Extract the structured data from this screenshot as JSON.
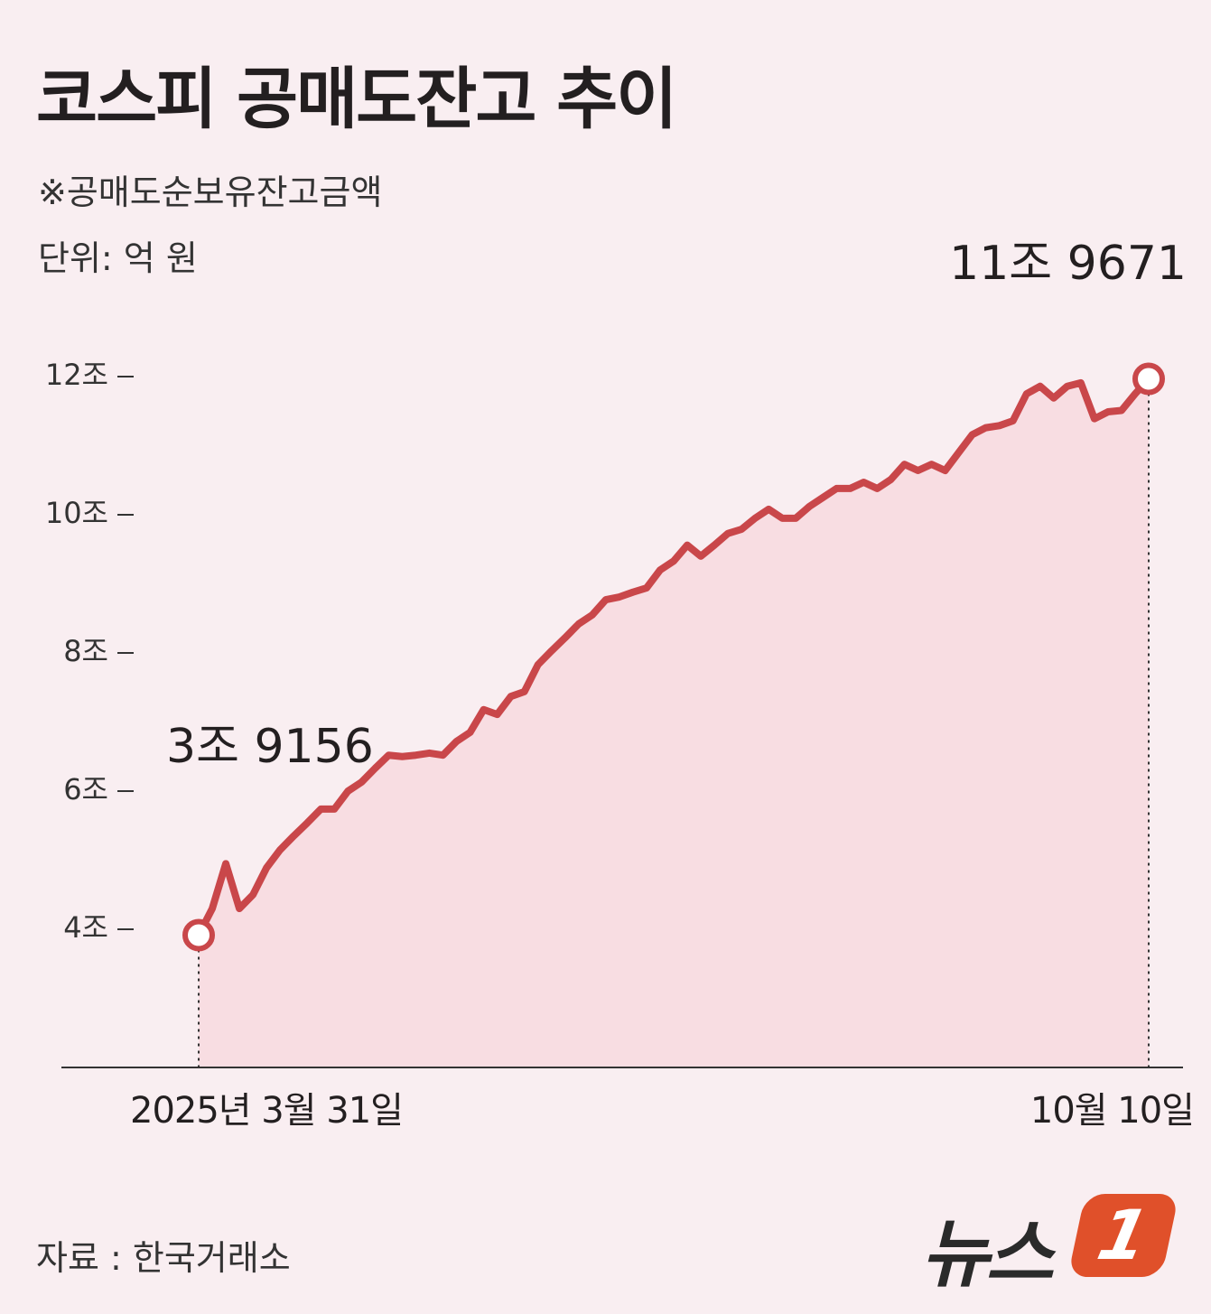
{
  "chart_data": {
    "type": "line",
    "title": "코스피 공매도잔고 추이",
    "subtitle": "※공매도순보유잔고금액",
    "unit": "단위: 억 원",
    "source": "자료 : 한국거래소",
    "logo": {
      "text": "뉴스",
      "badge": "1"
    },
    "color": "#c9474a",
    "fill": "#f8dde2",
    "ylim": [
      20000,
      140000
    ],
    "yticks": [
      {
        "value": 40000,
        "label": "4조"
      },
      {
        "value": 60000,
        "label": "6조"
      },
      {
        "value": 80000,
        "label": "8조"
      },
      {
        "value": 100000,
        "label": "10조"
      },
      {
        "value": 120000,
        "label": "12조"
      }
    ],
    "categories": [
      "2025년\n3월 31일",
      null,
      null,
      null,
      null,
      null,
      null,
      null,
      null,
      null,
      null,
      null,
      null,
      null,
      null,
      null,
      null,
      null,
      null,
      null,
      null,
      null,
      null,
      null,
      null,
      null,
      null,
      null,
      null,
      null,
      null,
      null,
      null,
      null,
      null,
      null,
      null,
      null,
      null,
      null,
      null,
      null,
      null,
      null,
      null,
      null,
      null,
      null,
      null,
      null,
      null,
      null,
      null,
      null,
      null,
      null,
      null,
      null,
      null,
      null,
      null,
      null,
      null,
      null,
      null,
      null,
      null,
      null,
      null,
      null,
      "10월 10일"
    ],
    "values": [
      39156,
      43000,
      49500,
      43000,
      45000,
      48900,
      51500,
      53500,
      55400,
      57400,
      57400,
      60000,
      61300,
      63300,
      65200,
      65000,
      65200,
      65500,
      65200,
      67200,
      68500,
      71800,
      71100,
      73700,
      74400,
      78300,
      80300,
      82200,
      84200,
      85500,
      87700,
      88100,
      88800,
      89400,
      92000,
      93300,
      95600,
      94000,
      95600,
      97300,
      97900,
      99500,
      100800,
      99500,
      99500,
      101200,
      102500,
      103800,
      103800,
      104700,
      103800,
      105100,
      107300,
      106400,
      107300,
      106400,
      109000,
      111600,
      112600,
      112900,
      113600,
      117500,
      118600,
      116900,
      118600,
      119100,
      113900,
      114900,
      115100,
      117500,
      119671
    ],
    "value_labels": [
      "3조\n9156",
      null,
      null,
      null,
      null,
      null,
      null,
      null,
      null,
      null,
      null,
      null,
      null,
      null,
      null,
      null,
      null,
      null,
      null,
      null,
      null,
      null,
      null,
      null,
      null,
      null,
      null,
      null,
      null,
      null,
      null,
      null,
      null,
      null,
      null,
      null,
      null,
      null,
      null,
      null,
      null,
      null,
      null,
      null,
      null,
      null,
      null,
      null,
      null,
      null,
      null,
      null,
      null,
      null,
      null,
      null,
      null,
      null,
      null,
      null,
      null,
      null,
      null,
      null,
      null,
      null,
      null,
      null,
      null,
      null,
      "11조\n9671"
    ]
  }
}
